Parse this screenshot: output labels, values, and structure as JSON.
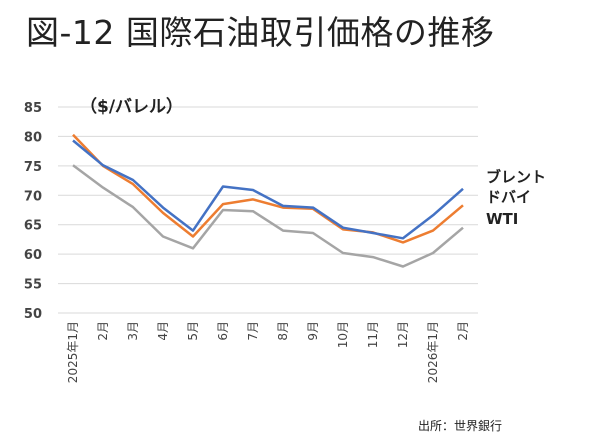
{
  "page": {
    "title": "図-12 国際石油取引価格の推移"
  },
  "chart_data": {
    "type": "line",
    "unit_label": "（$/バレル）",
    "categories": [
      "2025年1月",
      "2月",
      "3月",
      "4月",
      "5月",
      "6月",
      "7月",
      "8月",
      "9月",
      "10月",
      "11月",
      "12月",
      "2026年1月",
      "2月"
    ],
    "ylim": [
      50,
      85
    ],
    "yticks": [
      50,
      55,
      60,
      65,
      70,
      75,
      80,
      85
    ],
    "grid": "horizontal",
    "series": [
      {
        "name": "ブレント",
        "color": "#4472c4",
        "values": [
          79.3,
          75.1,
          72.6,
          67.9,
          64.0,
          71.5,
          70.9,
          68.2,
          67.9,
          64.5,
          63.6,
          62.7,
          66.6,
          71.1
        ]
      },
      {
        "name": "ドバイ",
        "color": "#ed7d31",
        "values": [
          80.3,
          75.0,
          71.9,
          67.0,
          63.0,
          68.5,
          69.3,
          67.9,
          67.7,
          64.2,
          63.7,
          62.0,
          64.0,
          68.3
        ]
      },
      {
        "name": "WTI",
        "color": "#a5a5a5",
        "values": [
          75.1,
          71.3,
          68.0,
          63.0,
          61.0,
          67.5,
          67.3,
          64.0,
          63.6,
          60.2,
          59.5,
          57.9,
          60.2,
          64.5
        ]
      }
    ],
    "series_labels": [
      "ブレント",
      "ドバイ",
      "WTI"
    ],
    "source": "出所：世界銀行"
  }
}
